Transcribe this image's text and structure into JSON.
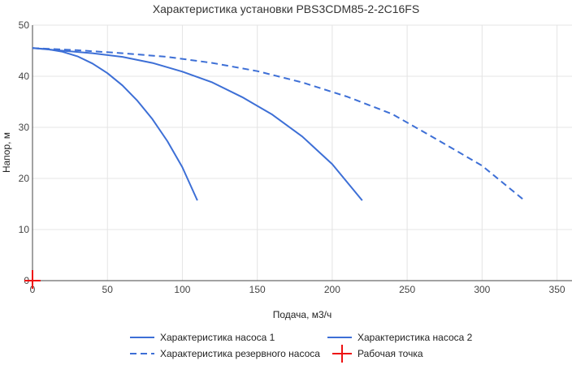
{
  "chart_data": {
    "type": "line",
    "title": "Характеристика установки PBS3CDM85-2-2C16FS",
    "xlabel": "Подача, м3/ч",
    "ylabel": "Напор, м",
    "xlim": [
      0,
      360
    ],
    "ylim": [
      0,
      50
    ],
    "x_ticks": [
      0,
      50,
      100,
      150,
      200,
      250,
      300,
      350
    ],
    "y_ticks": [
      0,
      10,
      20,
      30,
      40,
      50
    ],
    "grid": true,
    "legend_position": "bottom",
    "series": [
      {
        "name": "Характеристика насоса 1",
        "color": "#3d6fd6",
        "dash": "solid",
        "points": [
          [
            0,
            45.5
          ],
          [
            10,
            45.3
          ],
          [
            20,
            44.8
          ],
          [
            30,
            43.9
          ],
          [
            40,
            42.5
          ],
          [
            50,
            40.6
          ],
          [
            60,
            38.2
          ],
          [
            70,
            35.2
          ],
          [
            80,
            31.6
          ],
          [
            90,
            27.3
          ],
          [
            100,
            22.2
          ],
          [
            110,
            15.7
          ]
        ]
      },
      {
        "name": "Характеристика насоса 2",
        "color": "#3d6fd6",
        "dash": "solid",
        "points": [
          [
            0,
            45.5
          ],
          [
            20,
            45.0
          ],
          [
            40,
            44.5
          ],
          [
            60,
            43.8
          ],
          [
            80,
            42.6
          ],
          [
            100,
            40.9
          ],
          [
            120,
            38.8
          ],
          [
            140,
            35.9
          ],
          [
            160,
            32.5
          ],
          [
            180,
            28.2
          ],
          [
            200,
            22.8
          ],
          [
            220,
            15.7
          ]
        ]
      },
      {
        "name": "Характеристика резервного насоса",
        "color": "#3d6fd6",
        "dash": "dashed",
        "points": [
          [
            0,
            45.5
          ],
          [
            30,
            45.1
          ],
          [
            60,
            44.5
          ],
          [
            90,
            43.8
          ],
          [
            120,
            42.6
          ],
          [
            150,
            41.0
          ],
          [
            180,
            38.8
          ],
          [
            210,
            36.0
          ],
          [
            240,
            32.6
          ],
          [
            270,
            27.6
          ],
          [
            300,
            22.5
          ],
          [
            327,
            16.0
          ]
        ]
      },
      {
        "name": "Рабочая точка",
        "color": "#ee1111",
        "marker": "cross",
        "points": [
          [
            0,
            0
          ]
        ]
      }
    ]
  }
}
